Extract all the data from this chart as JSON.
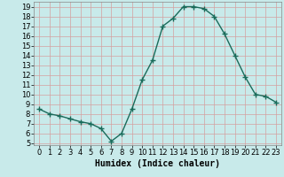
{
  "x": [
    0,
    1,
    2,
    3,
    4,
    5,
    6,
    7,
    8,
    9,
    10,
    11,
    12,
    13,
    14,
    15,
    16,
    17,
    18,
    19,
    20,
    21,
    22,
    23
  ],
  "y": [
    8.5,
    8.0,
    7.8,
    7.5,
    7.2,
    7.0,
    6.5,
    5.2,
    6.0,
    8.5,
    11.5,
    13.5,
    17.0,
    17.8,
    19.0,
    19.0,
    18.8,
    18.0,
    16.2,
    14.0,
    11.8,
    10.0,
    9.8,
    9.2
  ],
  "line_color": "#1a6b5a",
  "marker": "+",
  "marker_size": 4,
  "linewidth": 1.0,
  "background_color": "#c8eaea",
  "grid_color": "#d4a0a0",
  "xlabel": "Humidex (Indice chaleur)",
  "xlabel_fontsize": 7,
  "tick_fontsize": 6,
  "ylim": [
    4.8,
    19.5
  ],
  "xlim": [
    -0.5,
    23.5
  ],
  "yticks": [
    5,
    6,
    7,
    8,
    9,
    10,
    11,
    12,
    13,
    14,
    15,
    16,
    17,
    18,
    19
  ],
  "xticks": [
    0,
    1,
    2,
    3,
    4,
    5,
    6,
    7,
    8,
    9,
    10,
    11,
    12,
    13,
    14,
    15,
    16,
    17,
    18,
    19,
    20,
    21,
    22,
    23
  ]
}
